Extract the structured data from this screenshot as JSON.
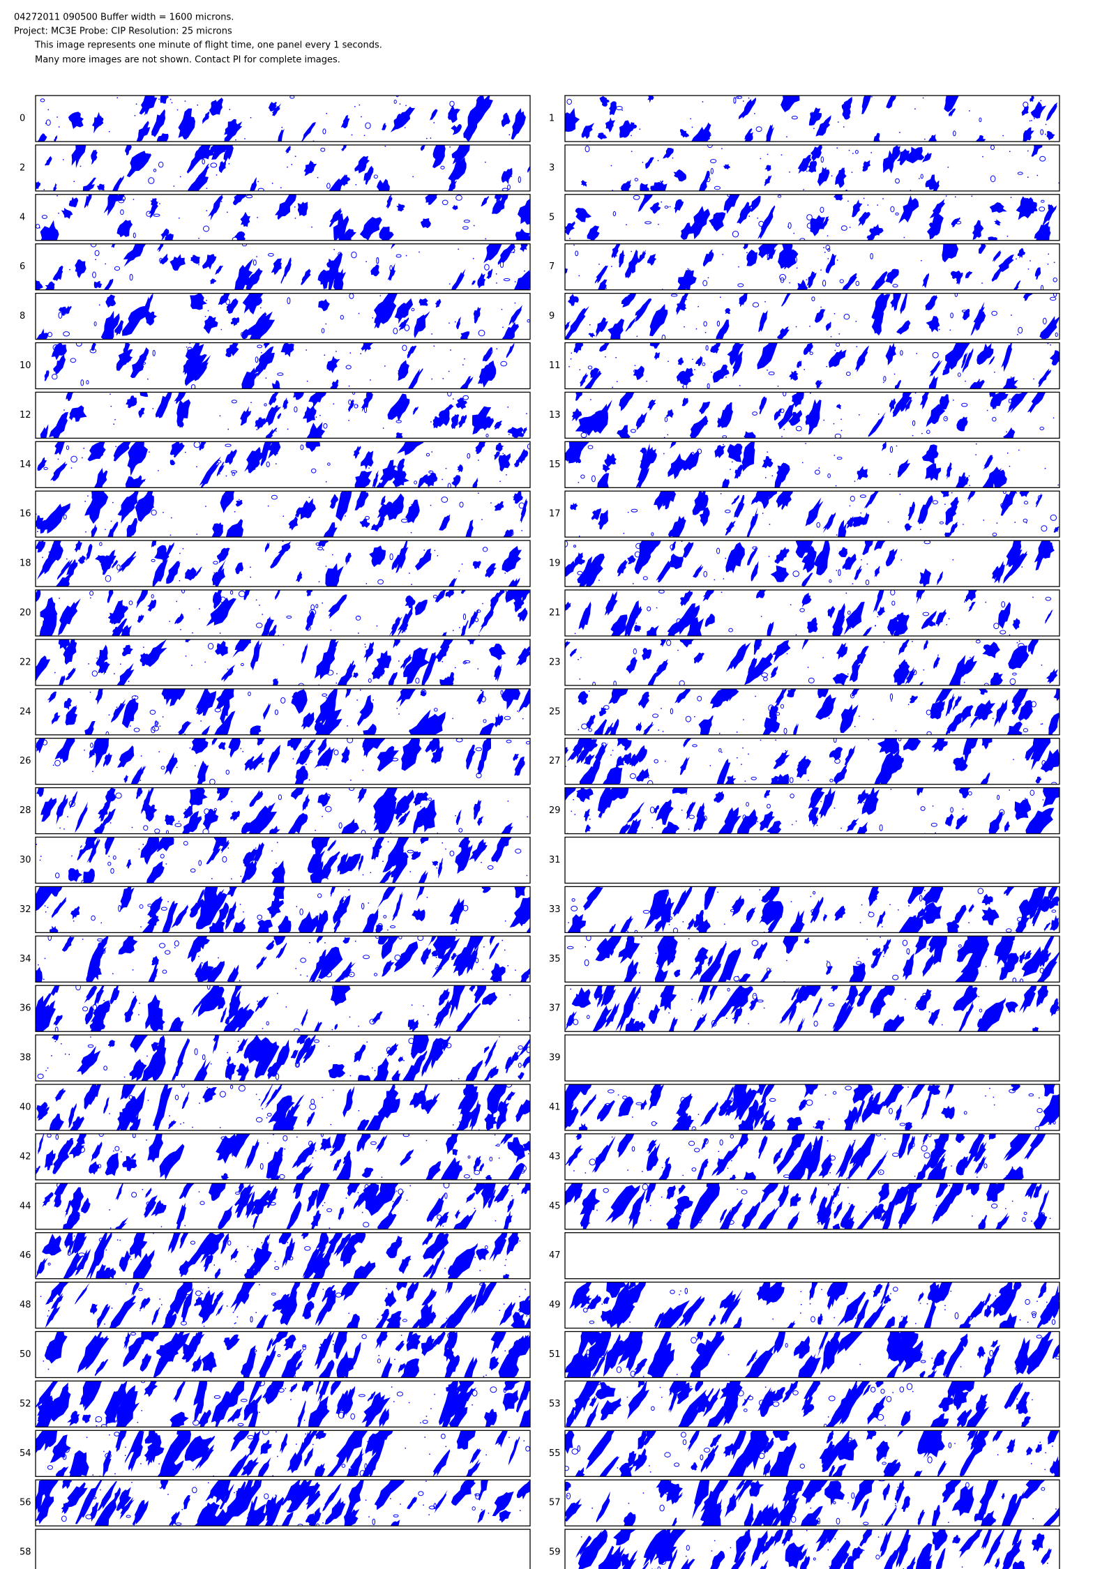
{
  "header": {
    "lines": [
      "04272011 090500  Buffer width = 1600 microns.",
      "Project: MC3E   Probe: CIP    Resolution: 25 microns",
      "This image represents one minute of flight time, one panel every 1 seconds.",
      "Many more images are not shown.  Contact PI for complete images."
    ]
  },
  "panels": [
    0,
    1,
    2,
    3,
    4,
    5,
    6,
    7,
    8,
    9,
    10,
    11,
    12,
    13,
    14,
    15,
    16,
    17,
    18,
    19,
    20,
    21,
    22,
    23,
    24,
    25,
    26,
    27,
    28,
    29,
    30,
    31,
    32,
    33,
    34,
    35,
    36,
    37,
    38,
    39,
    40,
    41,
    42,
    43,
    44,
    45,
    46,
    47,
    48,
    49,
    50,
    51,
    52,
    53,
    54,
    55,
    56,
    57,
    58,
    59
  ]
}
